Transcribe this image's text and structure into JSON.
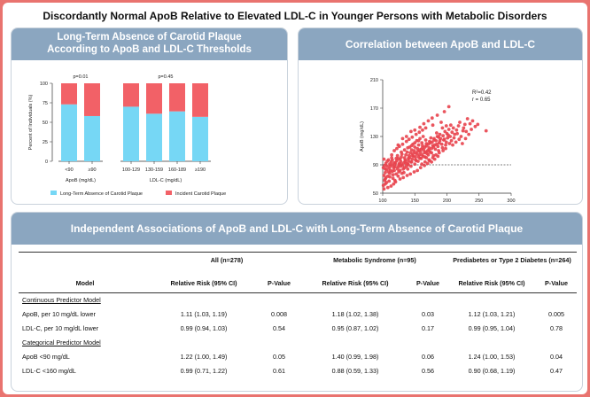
{
  "title": "Discordantly Normal ApoB Relative to Elevated LDL-C in Younger Persons with Metabolic Disorders",
  "colors": {
    "absence": "#76d7f5",
    "incident": "#f26167",
    "header": "#8ba6c0",
    "dot": "#e8424c"
  },
  "bar_panel": {
    "title_line1": "Long-Term Absence of Carotid Plaque",
    "title_line2": "According to ApoB and LDL-C Thresholds"
  },
  "scatter_panel": {
    "title": "Correlation between ApoB and LDL-C"
  },
  "table_panel": {
    "title": "Independent Associations of ApoB and LDL-C with Long-Term Absence of Carotid Plaque"
  },
  "chart_data": [
    {
      "type": "bar",
      "stacked": true,
      "ylabel": "Percent of Individuals (%)",
      "ylim": [
        0,
        100
      ],
      "yticks": [
        0,
        25,
        50,
        75,
        100
      ],
      "groups": [
        {
          "xlabel": "ApoB (mg/dL)",
          "pvalue": "p=0.01",
          "categories": [
            "<90",
            "≥90"
          ],
          "absence": [
            73,
            58
          ],
          "incident": [
            27,
            42
          ]
        },
        {
          "xlabel": "LDL-C (mg/dL)",
          "pvalue": "p=0.45",
          "categories": [
            "100-129",
            "130-159",
            "160-189",
            "≥190"
          ],
          "absence": [
            70,
            61,
            64,
            57
          ],
          "incident": [
            30,
            39,
            36,
            43
          ]
        }
      ],
      "legend": [
        "Long-Term Absence of Carotid Plaque",
        "Incident Carotid Plaque"
      ]
    },
    {
      "type": "scatter",
      "xlabel": "LDL-C (mg/dL)",
      "ylabel": "ApoB (mg/dL)",
      "xlim": [
        100,
        300
      ],
      "ylim": [
        50,
        210
      ],
      "xticks": [
        100,
        150,
        200,
        250,
        300
      ],
      "yticks": [
        50,
        90,
        130,
        170,
        210
      ],
      "reference_line_y": 90,
      "annotation_r2": "R²=0.42",
      "annotation_r": "r = 0.65",
      "points": [
        [
          101,
          61
        ],
        [
          103,
          68
        ],
        [
          105,
          72
        ],
        [
          102,
          75
        ],
        [
          104,
          79
        ],
        [
          106,
          83
        ],
        [
          101,
          86
        ],
        [
          103,
          89
        ],
        [
          105,
          92
        ],
        [
          107,
          95
        ],
        [
          102,
          98
        ],
        [
          104,
          70
        ],
        [
          108,
          74
        ],
        [
          109,
          80
        ],
        [
          110,
          85
        ],
        [
          112,
          88
        ],
        [
          111,
          91
        ],
        [
          113,
          94
        ],
        [
          115,
          97
        ],
        [
          114,
          100
        ],
        [
          116,
          76
        ],
        [
          118,
          82
        ],
        [
          117,
          86
        ],
        [
          119,
          90
        ],
        [
          120,
          93
        ],
        [
          122,
          96
        ],
        [
          121,
          99
        ],
        [
          123,
          103
        ],
        [
          125,
          80
        ],
        [
          124,
          87
        ],
        [
          126,
          92
        ],
        [
          128,
          95
        ],
        [
          127,
          98
        ],
        [
          129,
          101
        ],
        [
          130,
          105
        ],
        [
          132,
          84
        ],
        [
          131,
          89
        ],
        [
          133,
          93
        ],
        [
          135,
          97
        ],
        [
          134,
          100
        ],
        [
          136,
          104
        ],
        [
          138,
          108
        ],
        [
          137,
          88
        ],
        [
          139,
          92
        ],
        [
          140,
          96
        ],
        [
          142,
          100
        ],
        [
          141,
          103
        ],
        [
          143,
          107
        ],
        [
          145,
          111
        ],
        [
          144,
          94
        ],
        [
          146,
          98
        ],
        [
          148,
          102
        ],
        [
          147,
          106
        ],
        [
          149,
          110
        ],
        [
          150,
          115
        ],
        [
          152,
          96
        ],
        [
          151,
          101
        ],
        [
          153,
          105
        ],
        [
          155,
          109
        ],
        [
          154,
          113
        ],
        [
          156,
          118
        ],
        [
          158,
          99
        ],
        [
          157,
          104
        ],
        [
          159,
          108
        ],
        [
          160,
          112
        ],
        [
          162,
          117
        ],
        [
          161,
          121
        ],
        [
          163,
          102
        ],
        [
          165,
          107
        ],
        [
          164,
          111
        ],
        [
          166,
          115
        ],
        [
          168,
          120
        ],
        [
          167,
          125
        ],
        [
          169,
          106
        ],
        [
          170,
          110
        ],
        [
          172,
          114
        ],
        [
          171,
          119
        ],
        [
          173,
          123
        ],
        [
          175,
          128
        ],
        [
          174,
          108
        ],
        [
          176,
          113
        ],
        [
          178,
          117
        ],
        [
          177,
          122
        ],
        [
          180,
          127
        ],
        [
          182,
          112
        ],
        [
          181,
          118
        ],
        [
          183,
          124
        ],
        [
          185,
          130
        ],
        [
          184,
          135
        ],
        [
          186,
          116
        ],
        [
          188,
          121
        ],
        [
          190,
          127
        ],
        [
          189,
          133
        ],
        [
          192,
          119
        ],
        [
          195,
          125
        ],
        [
          194,
          131
        ],
        [
          197,
          137
        ],
        [
          199,
          122
        ],
        [
          201,
          128
        ],
        [
          200,
          134
        ],
        [
          203,
          140
        ],
        [
          205,
          130
        ],
        [
          208,
          136
        ],
        [
          210,
          142
        ],
        [
          207,
          124
        ],
        [
          212,
          133
        ],
        [
          215,
          139
        ],
        [
          218,
          145
        ],
        [
          220,
          150
        ],
        [
          225,
          138
        ],
        [
          228,
          147
        ],
        [
          232,
          155
        ],
        [
          116,
          71
        ],
        [
          121,
          77
        ],
        [
          127,
          82
        ],
        [
          133,
          79
        ],
        [
          139,
          84
        ],
        [
          144,
          88
        ],
        [
          150,
          91
        ],
        [
          155,
          95
        ],
        [
          160,
          99
        ],
        [
          166,
          101
        ],
        [
          171,
          104
        ],
        [
          176,
          107
        ],
        [
          106,
          65
        ],
        [
          111,
          73
        ],
        [
          119,
          68
        ],
        [
          124,
          74
        ],
        [
          130,
          78
        ],
        [
          136,
          92
        ],
        [
          142,
          115
        ],
        [
          147,
          119
        ],
        [
          153,
          124
        ],
        [
          158,
          127
        ],
        [
          163,
          130
        ],
        [
          168,
          100
        ],
        [
          173,
          96
        ],
        [
          179,
          103
        ],
        [
          187,
          110
        ],
        [
          193,
          114
        ],
        [
          198,
          118
        ],
        [
          204,
          120
        ],
        [
          109,
          97
        ],
        [
          114,
          104
        ],
        [
          118,
          110
        ],
        [
          122,
          113
        ],
        [
          126,
          116
        ],
        [
          131,
          119
        ],
        [
          137,
          123
        ],
        [
          141,
          126
        ],
        [
          146,
          129
        ],
        [
          152,
          133
        ],
        [
          157,
          136
        ],
        [
          162,
          139
        ],
        [
          167,
          142
        ],
        [
          178,
          146
        ],
        [
          191,
          150
        ],
        [
          196,
          165
        ],
        [
          203,
          172
        ],
        [
          261,
          138
        ],
        [
          186,
          102
        ],
        [
          181,
          98
        ],
        [
          176,
          94
        ],
        [
          170,
          92
        ],
        [
          165,
          89
        ],
        [
          159,
          86
        ],
        [
          154,
          82
        ],
        [
          149,
          80
        ],
        [
          143,
          77
        ],
        [
          138,
          75
        ],
        [
          132,
          72
        ],
        [
          127,
          70
        ],
        [
          120,
          66
        ],
        [
          117,
          63
        ],
        [
          113,
          60
        ],
        [
          108,
          58
        ],
        [
          102,
          56
        ],
        [
          104,
          63
        ],
        [
          110,
          67
        ],
        [
          115,
          90
        ],
        [
          123,
          84
        ],
        [
          128,
          88
        ],
        [
          134,
          86
        ],
        [
          140,
          90
        ],
        [
          145,
          94
        ],
        [
          151,
          97
        ],
        [
          156,
          101
        ],
        [
          161,
          104
        ],
        [
          167,
          108
        ],
        [
          172,
          111
        ],
        [
          179,
          115
        ],
        [
          184,
          119
        ],
        [
          189,
          124
        ],
        [
          196,
          126
        ],
        [
          202,
          132
        ],
        [
          206,
          146
        ],
        [
          211,
          128
        ],
        [
          216,
          134
        ],
        [
          222,
          130
        ],
        [
          226,
          142
        ],
        [
          230,
          137
        ],
        [
          236,
          148
        ],
        [
          240,
          152
        ],
        [
          112,
          82
        ],
        [
          118,
          93
        ],
        [
          124,
          99
        ],
        [
          129,
          91
        ],
        [
          135,
          95
        ],
        [
          140,
          99
        ],
        [
          146,
          103
        ],
        [
          151,
          107
        ],
        [
          157,
          111
        ],
        [
          162,
          114
        ],
        [
          168,
          117
        ],
        [
          174,
          121
        ],
        [
          180,
          125
        ],
        [
          187,
          129
        ],
        [
          193,
          142
        ],
        [
          199,
          145
        ],
        [
          124,
          118
        ],
        [
          131,
          127
        ],
        [
          137,
          130
        ],
        [
          144,
          137
        ],
        [
          150,
          139
        ],
        [
          158,
          143
        ],
        [
          164,
          148
        ],
        [
          171,
          152
        ],
        [
          177,
          156
        ],
        [
          185,
          160
        ],
        [
          104,
          84
        ],
        [
          107,
          88
        ],
        [
          111,
          78
        ],
        [
          115,
          81
        ],
        [
          119,
          87
        ],
        [
          125,
          90
        ],
        [
          129,
          108
        ],
        [
          134,
          111
        ],
        [
          139,
          114
        ],
        [
          145,
          117
        ],
        [
          150,
          121
        ],
        [
          156,
          124
        ],
        [
          161,
          91
        ],
        [
          166,
          94
        ],
        [
          172,
          97
        ],
        [
          178,
          100
        ],
        [
          183,
          104
        ],
        [
          188,
          107
        ],
        [
          194,
          110
        ],
        [
          198,
          113
        ],
        [
          209,
          118
        ],
        [
          214,
          122
        ],
        [
          219,
          126
        ],
        [
          224,
          120
        ],
        [
          229,
          127
        ],
        [
          234,
          133
        ],
        [
          238,
          140
        ],
        [
          244,
          144
        ],
        [
          248,
          147
        ]
      ]
    }
  ],
  "table": {
    "col_model": "Model",
    "groups": [
      "All (n=278)",
      "Metabolic Syndrome (n=95)",
      "Prediabetes or Type 2 Diabetes (n=264)"
    ],
    "col_rr": "Relative Risk (95% CI)",
    "col_p": "P-Value",
    "sections": [
      {
        "title": "Continuous Predictor Model",
        "rows": [
          {
            "label": "ApoB, per 10 mg/dL lower",
            "vals": [
              "1.11 (1.03, 1.19)",
              "0.008",
              "1.18 (1.02, 1.38)",
              "0.03",
              "1.12 (1.03, 1.21)",
              "0.005"
            ]
          },
          {
            "label": "LDL-C, per 10 mg/dL lower",
            "vals": [
              "0.99 (0.94, 1.03)",
              "0.54",
              "0.95 (0.87, 1.02)",
              "0.17",
              "0.99 (0.95, 1.04)",
              "0.78"
            ]
          }
        ]
      },
      {
        "title": "Categorical Predictor Model",
        "rows": [
          {
            "label": "ApoB <90 mg/dL",
            "vals": [
              "1.22 (1.00, 1.49)",
              "0.05",
              "1.40 (0.99, 1.98)",
              "0.06",
              "1.24 (1.00, 1.53)",
              "0.04"
            ]
          },
          {
            "label": "LDL-C <160 mg/dL",
            "vals": [
              "0.99 (0.71, 1.22)",
              "0.61",
              "0.88 (0.59, 1.33)",
              "0.56",
              "0.90 (0.68, 1.19)",
              "0.47"
            ]
          }
        ]
      }
    ]
  }
}
